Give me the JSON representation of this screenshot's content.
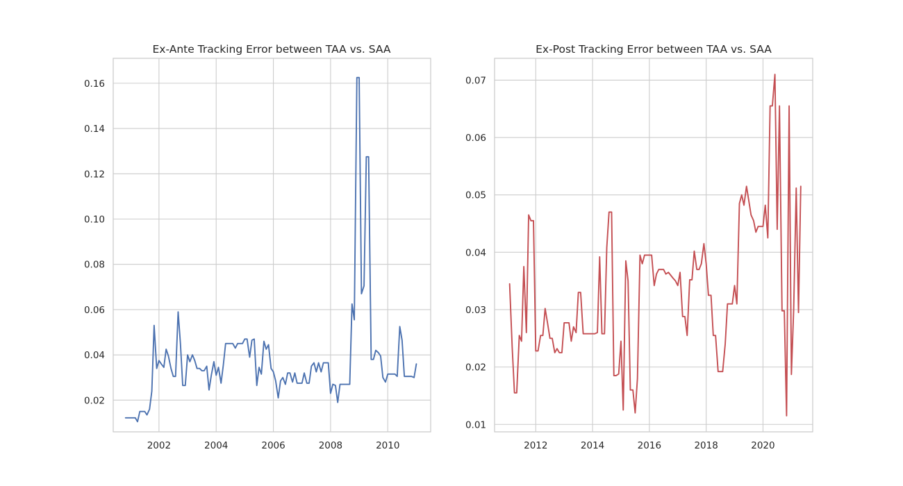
{
  "chart_data": [
    {
      "type": "line",
      "title": "Ex-Ante Tracking Error between TAA vs. SAA",
      "xlabel": "",
      "ylabel": "",
      "xlim": [
        2000.4,
        2011.5
      ],
      "ylim": [
        0.006,
        0.171
      ],
      "xticks": [
        2002,
        2004,
        2006,
        2008,
        2010
      ],
      "yticks": [
        0.02,
        0.04,
        0.06,
        0.08,
        0.1,
        0.12,
        0.14,
        0.16
      ],
      "ytick_labels": [
        "0.02",
        "0.04",
        "0.06",
        "0.08",
        "0.10",
        "0.12",
        "0.14",
        "0.16"
      ],
      "grid": true,
      "legend": "none",
      "color": "#4c72b0",
      "series": [
        {
          "x": [
            2000.83,
            2000.92,
            2001.0,
            2001.08,
            2001.17,
            2001.25,
            2001.33,
            2001.42,
            2001.5,
            2001.58,
            2001.67,
            2001.75,
            2001.83,
            2001.92,
            2002.0,
            2002.08,
            2002.17,
            2002.25,
            2002.33,
            2002.42,
            2002.5,
            2002.58,
            2002.67,
            2002.75,
            2002.83,
            2002.92,
            2003.0,
            2003.08,
            2003.17,
            2003.25,
            2003.33,
            2003.42,
            2003.5,
            2003.58,
            2003.67,
            2003.75,
            2003.83,
            2003.92,
            2004.0,
            2004.08,
            2004.17,
            2004.25,
            2004.33,
            2004.42,
            2004.5,
            2004.58,
            2004.67,
            2004.75,
            2004.83,
            2004.92,
            2005.0,
            2005.08,
            2005.17,
            2005.25,
            2005.33,
            2005.42,
            2005.5,
            2005.58,
            2005.67,
            2005.75,
            2005.83,
            2005.92,
            2006.0,
            2006.08,
            2006.17,
            2006.25,
            2006.33,
            2006.42,
            2006.5,
            2006.58,
            2006.67,
            2006.75,
            2006.83,
            2006.92,
            2007.0,
            2007.08,
            2007.17,
            2007.25,
            2007.33,
            2007.42,
            2007.5,
            2007.58,
            2007.67,
            2007.75,
            2007.83,
            2007.92,
            2008.0,
            2008.08,
            2008.17,
            2008.25,
            2008.33,
            2008.42,
            2008.5,
            2008.58,
            2008.67,
            2008.75,
            2008.83,
            2008.92,
            2009.0,
            2009.08,
            2009.17,
            2009.25,
            2009.33,
            2009.42,
            2009.5,
            2009.58,
            2009.67,
            2009.75,
            2009.83,
            2009.92,
            2010.0,
            2010.08,
            2010.17,
            2010.25,
            2010.33,
            2010.42,
            2010.5,
            2010.58,
            2010.67,
            2010.75,
            2010.83,
            2010.92,
            2011.0
          ],
          "y": [
            0.0122,
            0.0122,
            0.0122,
            0.0122,
            0.0122,
            0.0105,
            0.015,
            0.015,
            0.015,
            0.0135,
            0.016,
            0.024,
            0.053,
            0.034,
            0.0375,
            0.036,
            0.0345,
            0.0425,
            0.0395,
            0.034,
            0.0305,
            0.0305,
            0.059,
            0.045,
            0.0265,
            0.0265,
            0.04,
            0.037,
            0.04,
            0.0375,
            0.034,
            0.034,
            0.033,
            0.033,
            0.035,
            0.0245,
            0.031,
            0.037,
            0.031,
            0.0345,
            0.0275,
            0.0355,
            0.045,
            0.045,
            0.045,
            0.045,
            0.043,
            0.045,
            0.045,
            0.045,
            0.047,
            0.047,
            0.039,
            0.0465,
            0.047,
            0.0265,
            0.0345,
            0.0315,
            0.046,
            0.0425,
            0.0445,
            0.034,
            0.0325,
            0.0285,
            0.021,
            0.0285,
            0.03,
            0.027,
            0.032,
            0.032,
            0.028,
            0.032,
            0.0275,
            0.0275,
            0.0275,
            0.032,
            0.0275,
            0.0275,
            0.035,
            0.0365,
            0.0325,
            0.0365,
            0.0325,
            0.0365,
            0.0365,
            0.0365,
            0.023,
            0.027,
            0.0265,
            0.019,
            0.027,
            0.027,
            0.027,
            0.027,
            0.027,
            0.0625,
            0.0555,
            0.1625,
            0.1625,
            0.067,
            0.0705,
            0.1275,
            0.1275,
            0.038,
            0.038,
            0.042,
            0.041,
            0.0395,
            0.03,
            0.028,
            0.0315,
            0.0315,
            0.0315,
            0.0315,
            0.0305,
            0.0525,
            0.0465,
            0.0305,
            0.0305,
            0.0305,
            0.0305,
            0.03,
            0.036
          ]
        }
      ]
    },
    {
      "type": "line",
      "title": "Ex-Post Tracking Error between TAA vs. SAA",
      "xlabel": "",
      "ylabel": "",
      "xlim": [
        2010.55,
        2021.75
      ],
      "ylim": [
        0.0087,
        0.0738
      ],
      "xticks": [
        2012,
        2014,
        2016,
        2018,
        2020
      ],
      "yticks": [
        0.01,
        0.02,
        0.03,
        0.04,
        0.05,
        0.06,
        0.07
      ],
      "ytick_labels": [
        "0.01",
        "0.02",
        "0.03",
        "0.04",
        "0.05",
        "0.06",
        "0.07"
      ],
      "grid": true,
      "legend": "none",
      "color": "#c44e52",
      "series": [
        {
          "x": [
            2011.08,
            2011.17,
            2011.25,
            2011.33,
            2011.42,
            2011.5,
            2011.58,
            2011.67,
            2011.75,
            2011.83,
            2011.92,
            2012.0,
            2012.08,
            2012.17,
            2012.25,
            2012.33,
            2012.42,
            2012.5,
            2012.58,
            2012.67,
            2012.75,
            2012.83,
            2012.92,
            2013.0,
            2013.08,
            2013.17,
            2013.25,
            2013.33,
            2013.42,
            2013.5,
            2013.58,
            2013.67,
            2013.75,
            2013.83,
            2013.92,
            2014.0,
            2014.08,
            2014.17,
            2014.25,
            2014.33,
            2014.42,
            2014.5,
            2014.58,
            2014.67,
            2014.75,
            2014.83,
            2014.92,
            2015.0,
            2015.08,
            2015.17,
            2015.25,
            2015.33,
            2015.42,
            2015.5,
            2015.58,
            2015.67,
            2015.75,
            2015.83,
            2015.92,
            2016.0,
            2016.08,
            2016.17,
            2016.25,
            2016.33,
            2016.42,
            2016.5,
            2016.58,
            2016.67,
            2016.75,
            2016.83,
            2016.92,
            2017.0,
            2017.08,
            2017.17,
            2017.25,
            2017.33,
            2017.42,
            2017.5,
            2017.58,
            2017.67,
            2017.75,
            2017.83,
            2017.92,
            2018.0,
            2018.08,
            2018.17,
            2018.25,
            2018.33,
            2018.42,
            2018.5,
            2018.58,
            2018.67,
            2018.75,
            2018.83,
            2018.92,
            2019.0,
            2019.08,
            2019.17,
            2019.25,
            2019.33,
            2019.42,
            2019.5,
            2019.58,
            2019.67,
            2019.75,
            2019.83,
            2019.92,
            2020.0,
            2020.08,
            2020.17,
            2020.25,
            2020.33,
            2020.42,
            2020.5,
            2020.58,
            2020.67,
            2020.75,
            2020.83,
            2020.92,
            2021.0,
            2021.08,
            2021.17,
            2021.25,
            2021.33
          ],
          "y": [
            0.0345,
            0.0235,
            0.0155,
            0.0155,
            0.0255,
            0.0245,
            0.0375,
            0.026,
            0.0465,
            0.0455,
            0.0455,
            0.0228,
            0.0228,
            0.0255,
            0.0255,
            0.0302,
            0.0275,
            0.025,
            0.025,
            0.0225,
            0.0232,
            0.0225,
            0.0225,
            0.0277,
            0.0277,
            0.0277,
            0.0245,
            0.027,
            0.026,
            0.033,
            0.033,
            0.0258,
            0.0258,
            0.0258,
            0.0258,
            0.0258,
            0.0258,
            0.026,
            0.0392,
            0.0258,
            0.0258,
            0.0408,
            0.047,
            0.047,
            0.0185,
            0.0185,
            0.0188,
            0.0245,
            0.0125,
            0.0385,
            0.035,
            0.016,
            0.016,
            0.012,
            0.018,
            0.0395,
            0.038,
            0.0395,
            0.0395,
            0.0395,
            0.0395,
            0.0342,
            0.0362,
            0.037,
            0.037,
            0.037,
            0.0362,
            0.0365,
            0.036,
            0.0355,
            0.035,
            0.0342,
            0.0365,
            0.0288,
            0.0288,
            0.0255,
            0.0352,
            0.0352,
            0.0402,
            0.037,
            0.037,
            0.038,
            0.0415,
            0.038,
            0.0325,
            0.0325,
            0.0255,
            0.0255,
            0.0192,
            0.0192,
            0.0192,
            0.024,
            0.031,
            0.031,
            0.031,
            0.0342,
            0.031,
            0.0485,
            0.05,
            0.0482,
            0.0515,
            0.049,
            0.0465,
            0.0455,
            0.0435,
            0.0445,
            0.0445,
            0.0445,
            0.0482,
            0.0425,
            0.0655,
            0.0655,
            0.071,
            0.044,
            0.0655,
            0.0298,
            0.0298,
            0.0115,
            0.0655,
            0.0187,
            0.03,
            0.0512,
            0.0295,
            0.0515
          ]
        }
      ]
    }
  ]
}
